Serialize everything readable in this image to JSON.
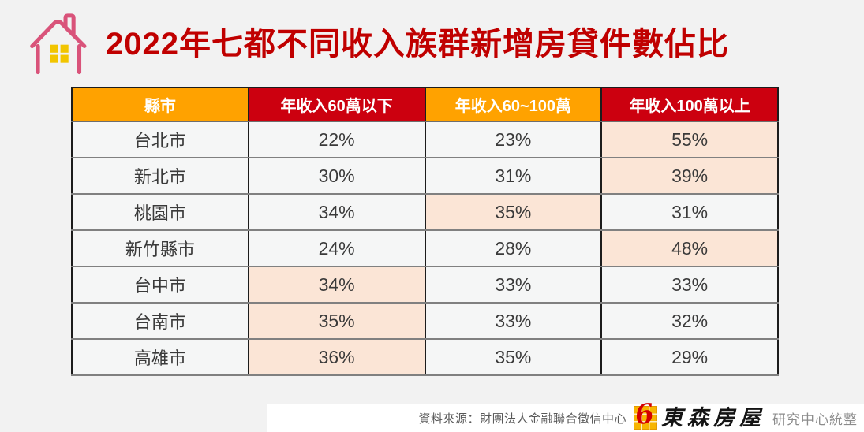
{
  "page": {
    "background": "#f2f2f2"
  },
  "header": {
    "icon": "house-outline-icon",
    "icon_outline_color": "#d9537a",
    "icon_window_color": "#f2c500",
    "title_color": "#c00000"
  },
  "chart_data": {
    "type": "table",
    "title": "2022年七都不同收入族群新增房貸件數佔比",
    "columns": [
      {
        "label": "縣市",
        "header_bg": "#ffa200"
      },
      {
        "label": "年收入60萬以下",
        "header_bg": "#cc000f"
      },
      {
        "label": "年收入60~100萬",
        "header_bg": "#ffa200"
      },
      {
        "label": "年收入100萬以上",
        "header_bg": "#cc000f"
      }
    ],
    "rows": [
      {
        "city": "台北市",
        "values": [
          "22%",
          "23%",
          "55%"
        ],
        "highlight": [
          false,
          false,
          true
        ]
      },
      {
        "city": "新北市",
        "values": [
          "30%",
          "31%",
          "39%"
        ],
        "highlight": [
          false,
          false,
          true
        ]
      },
      {
        "city": "桃園市",
        "values": [
          "34%",
          "35%",
          "31%"
        ],
        "highlight": [
          false,
          true,
          false
        ]
      },
      {
        "city": "新竹縣市",
        "values": [
          "24%",
          "28%",
          "48%"
        ],
        "highlight": [
          false,
          false,
          true
        ]
      },
      {
        "city": "台中市",
        "values": [
          "34%",
          "33%",
          "33%"
        ],
        "highlight": [
          true,
          false,
          false
        ]
      },
      {
        "city": "台南市",
        "values": [
          "35%",
          "33%",
          "32%"
        ],
        "highlight": [
          true,
          false,
          false
        ]
      },
      {
        "city": "高雄市",
        "values": [
          "36%",
          "35%",
          "29%"
        ],
        "highlight": [
          true,
          false,
          false
        ]
      }
    ],
    "highlight_color": "#fbe5d6",
    "legend_position": "none",
    "grid": true
  },
  "footer": {
    "source": "資料來源：財團法人金融聯合徵信中心",
    "logo_mark": "ehouse-logo-icon",
    "logo_six": "6",
    "logo_text": "東森房屋",
    "suffix": "研究中心統整"
  }
}
